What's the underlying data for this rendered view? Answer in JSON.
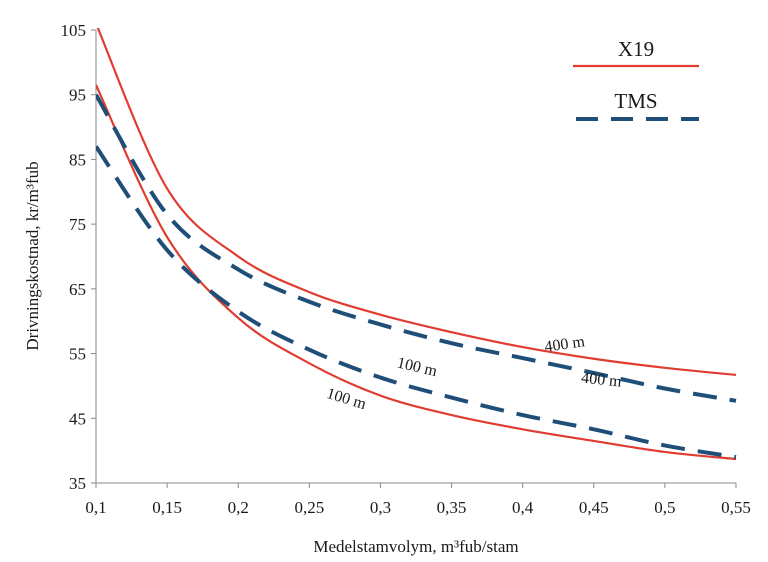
{
  "chart_data": {
    "type": "line",
    "xlabel": "Medelstamvolym, m³fub/stam",
    "ylabel": "Drivningskostnad, kr/m³fub",
    "xlim": [
      0.1,
      0.55
    ],
    "ylim": [
      35,
      105
    ],
    "x_ticks": [
      "0,1",
      "0,15",
      "0,2",
      "0,25",
      "0,3",
      "0,35",
      "0,4",
      "0,45",
      "0,5",
      "0,55"
    ],
    "x_tick_values": [
      0.1,
      0.15,
      0.2,
      0.25,
      0.3,
      0.35,
      0.4,
      0.45,
      0.5,
      0.55
    ],
    "y_ticks": [
      "35",
      "45",
      "55",
      "65",
      "75",
      "85",
      "95",
      "105"
    ],
    "y_tick_values": [
      35,
      45,
      55,
      65,
      75,
      85,
      95,
      105
    ],
    "grid": false,
    "legend_position": "top-right",
    "legend": [
      {
        "name": "X19",
        "color": "#e03c31",
        "dash": "solid"
      },
      {
        "name": "TMS",
        "color": "#1f4e79",
        "dash": "dashed"
      }
    ],
    "x": [
      0.1,
      0.15,
      0.2,
      0.25,
      0.3,
      0.35,
      0.4,
      0.45,
      0.5,
      0.55
    ],
    "series": [
      {
        "group": "X19",
        "label": "400 m",
        "color": "#e03c31",
        "dash": "solid",
        "values": [
          106,
          80.5,
          70,
          64.5,
          61,
          58.3,
          56,
          54.2,
          52.8,
          51.7
        ]
      },
      {
        "group": "X19",
        "label": "100 m",
        "color": "#e03c31",
        "dash": "solid",
        "values": [
          96.5,
          73,
          60.5,
          53.5,
          48.5,
          45.5,
          43.3,
          41.5,
          39.8,
          38.7
        ]
      },
      {
        "group": "TMS",
        "label": "400 m",
        "color": "#1f4e79",
        "dash": "dashed",
        "values": [
          95,
          76.5,
          68,
          63,
          59.5,
          56.6,
          54.3,
          52,
          49.6,
          47.7
        ]
      },
      {
        "group": "TMS",
        "label": "100 m",
        "color": "#1f4e79",
        "dash": "dashed",
        "values": [
          87,
          71,
          61.5,
          55.6,
          51.3,
          48.2,
          45.5,
          43.3,
          40.8,
          39
        ]
      }
    ],
    "annotations": [
      {
        "text": "400 m",
        "at": [
          0.43,
          55.7
        ],
        "rotate": -8
      },
      {
        "text": "400 m",
        "at": [
          0.455,
          50.2
        ],
        "rotate": 6
      },
      {
        "text": "100 m",
        "at": [
          0.325,
          52.2
        ],
        "rotate": 13
      },
      {
        "text": "100 m",
        "at": [
          0.275,
          47.3
        ],
        "rotate": 17
      }
    ]
  }
}
